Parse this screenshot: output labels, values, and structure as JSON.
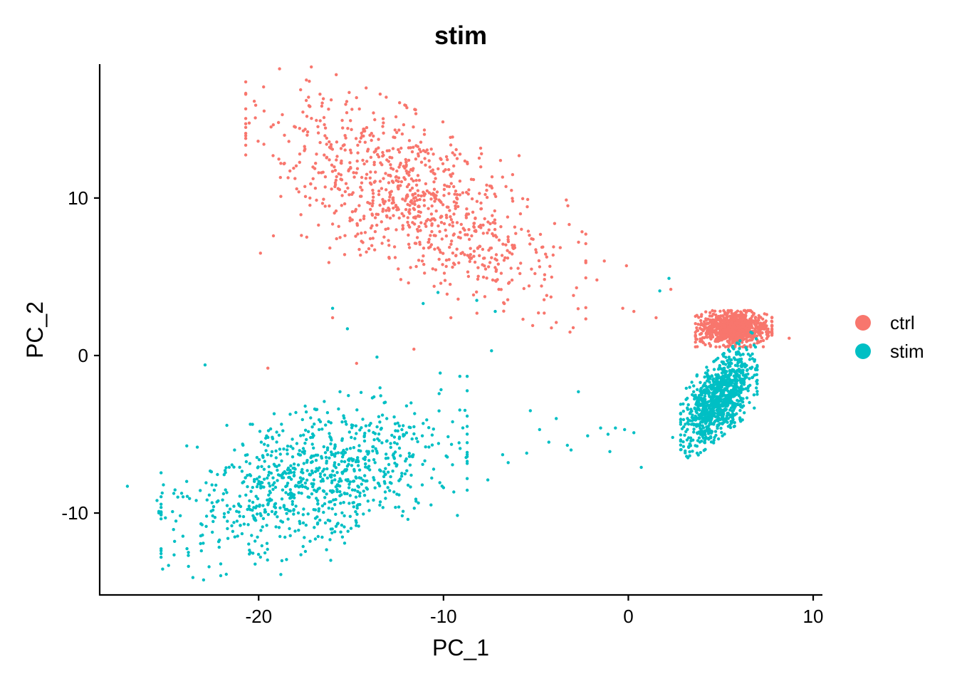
{
  "chart_data": {
    "type": "scatter",
    "title": "stim",
    "xlabel": "PC_1",
    "ylabel": "PC_2",
    "xlim": [
      -28.6,
      10.5
    ],
    "ylim": [
      -15.2,
      18.5
    ],
    "x_ticks": [
      -20,
      -10,
      0,
      10
    ],
    "y_ticks": [
      -10,
      0,
      10
    ],
    "x_tick_labels": [
      "-20",
      "-10",
      "0",
      "10"
    ],
    "y_tick_labels": [
      "-10",
      "0",
      "10"
    ],
    "grid": false,
    "legend_position": "right",
    "series": [
      {
        "name": "ctrl",
        "color": "#F8766D",
        "clusters": [
          {
            "cx": -11.5,
            "cy": 10.0,
            "sx": 4.0,
            "sy": 3.2,
            "rho": -0.65,
            "n": 900
          },
          {
            "cx": 5.7,
            "cy": 1.7,
            "sx": 0.9,
            "sy": 0.5,
            "rho": 0.0,
            "n": 1000
          }
        ],
        "points": [
          [
            -17.3,
            16.4
          ],
          [
            -16.5,
            16.3
          ],
          [
            -15.1,
            16.7
          ],
          [
            -13.1,
            16.4
          ],
          [
            -18.8,
            12.2
          ],
          [
            -18.8,
            10.1
          ],
          [
            -19.2,
            7.6
          ],
          [
            -19.9,
            6.5
          ],
          [
            -16.2,
            5.9
          ],
          [
            -16.0,
            2.4
          ],
          [
            -1.3,
            6.0
          ],
          [
            -0.1,
            5.7
          ],
          [
            0.3,
            2.8
          ],
          [
            -0.3,
            3.0
          ],
          [
            2.3,
            4.2
          ],
          [
            1.5,
            2.4
          ],
          [
            8.7,
            1.1
          ],
          [
            -19.5,
            -0.8
          ],
          [
            -14.7,
            -0.5
          ],
          [
            -9.6,
            2.4
          ],
          [
            -11.6,
            0.4
          ],
          [
            -3.9,
            2.1
          ],
          [
            -5.7,
            2.3
          ],
          [
            -2.8,
            4.3
          ],
          [
            -1.7,
            4.8
          ]
        ]
      },
      {
        "name": "stim",
        "color": "#00BFC4",
        "clusters": [
          {
            "cx": -17.0,
            "cy": -7.8,
            "sx": 3.6,
            "sy": 2.3,
            "rho": 0.45,
            "n": 900
          },
          {
            "cx": 4.9,
            "cy": -2.7,
            "sx": 0.9,
            "sy": 1.4,
            "rho": 0.6,
            "n": 1000
          }
        ],
        "points": [
          [
            -27.1,
            -8.3
          ],
          [
            -25.5,
            -9.2
          ],
          [
            -25.4,
            -10.0
          ],
          [
            -25.4,
            -9.9
          ],
          [
            -23.8,
            -12.5
          ],
          [
            -22.9,
            -0.6
          ],
          [
            -23.1,
            -12.4
          ],
          [
            -19.9,
            -12.8
          ],
          [
            -18.8,
            -13.9
          ],
          [
            -16.1,
            -13.0
          ],
          [
            -15.6,
            -2.3
          ],
          [
            -15.2,
            1.7
          ],
          [
            -16.0,
            3.0
          ],
          [
            -13.6,
            -0.1
          ],
          [
            -12.0,
            -3.2
          ],
          [
            -11.1,
            3.3
          ],
          [
            -10.3,
            4.0
          ],
          [
            -8.2,
            3.5
          ],
          [
            -7.4,
            0.3
          ],
          [
            -5.3,
            -3.5
          ],
          [
            -4.8,
            -4.7
          ],
          [
            -4.3,
            -5.5
          ],
          [
            -3.9,
            -4.0
          ],
          [
            -3.3,
            -5.7
          ],
          [
            -2.7,
            -2.3
          ],
          [
            -2.2,
            -5.1
          ],
          [
            -1.5,
            -4.6
          ],
          [
            -1.0,
            -6.1
          ],
          [
            0.7,
            -7.1
          ],
          [
            -0.7,
            -4.6
          ],
          [
            -9.1,
            -5.9
          ],
          [
            -6.8,
            -6.3
          ],
          [
            -6.5,
            -6.8
          ],
          [
            -7.6,
            -7.9
          ],
          [
            -5.5,
            -6.2
          ],
          [
            -3.1,
            -6.0
          ],
          [
            -0.2,
            -4.7
          ],
          [
            0.3,
            -4.9
          ],
          [
            -1.1,
            -5.0
          ],
          [
            2.4,
            -5.2
          ],
          [
            1.7,
            4.1
          ],
          [
            2.2,
            4.9
          ],
          [
            -7.2,
            2.8
          ]
        ]
      }
    ]
  }
}
